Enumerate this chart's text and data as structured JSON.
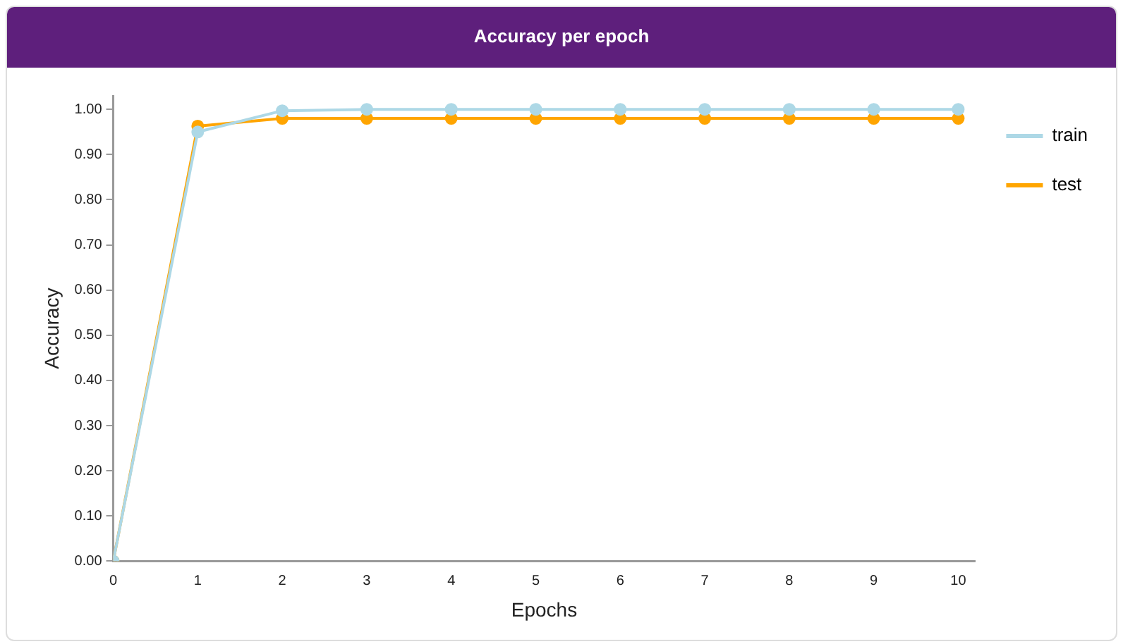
{
  "chart_data": {
    "type": "line",
    "title": "Accuracy per epoch",
    "xlabel": "Epochs",
    "ylabel": "Accuracy",
    "x": [
      0,
      1,
      2,
      3,
      4,
      5,
      6,
      7,
      8,
      9,
      10
    ],
    "series": [
      {
        "name": "train",
        "color": "#add8e6",
        "values": [
          0,
          0.95,
          0.997,
          1.0,
          1.0,
          1.0,
          1.0,
          1.0,
          1.0,
          1.0,
          1.0
        ]
      },
      {
        "name": "test",
        "color": "#ffa500",
        "values": [
          0,
          0.963,
          0.98,
          0.98,
          0.98,
          0.98,
          0.98,
          0.98,
          0.98,
          0.98,
          0.98
        ]
      }
    ],
    "xlim": [
      0,
      10.2
    ],
    "xticks": [
      0,
      1,
      2,
      3,
      4,
      5,
      6,
      7,
      8,
      9,
      10
    ],
    "ylim": [
      0,
      1.03
    ],
    "yticks": [
      {
        "value": 0,
        "label": "0.00"
      },
      {
        "value": 0.1,
        "label": "0.10"
      },
      {
        "value": 0.2,
        "label": "0.20"
      },
      {
        "value": 0.3,
        "label": "0.30"
      },
      {
        "value": 0.4,
        "label": "0.40"
      },
      {
        "value": 0.5,
        "label": "0.50"
      },
      {
        "value": 0.6,
        "label": "0.60"
      },
      {
        "value": 0.7,
        "label": "0.70"
      },
      {
        "value": 0.8,
        "label": "0.80"
      },
      {
        "value": 0.9,
        "label": "0.90"
      },
      {
        "value": 1.0,
        "label": "1.00"
      }
    ],
    "grid": false,
    "legend": "top right",
    "marker": "circle",
    "line_style": "solid"
  }
}
